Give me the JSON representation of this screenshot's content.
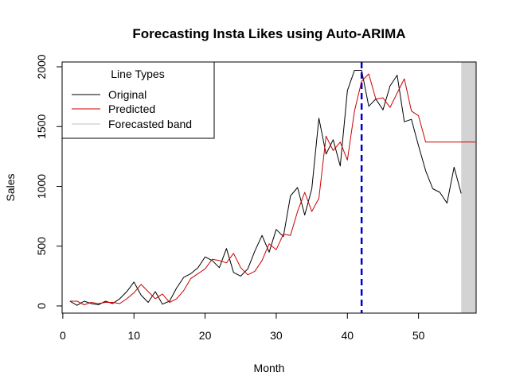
{
  "chart_data": {
    "type": "line",
    "title": "Forecasting Insta Likes using Auto-ARIMA",
    "xlabel": "Month",
    "ylabel": "Sales",
    "xlim": [
      -0.1,
      58.1
    ],
    "ylim": [
      -60,
      2040
    ],
    "x_ticks": [
      0,
      10,
      20,
      30,
      40,
      50
    ],
    "y_ticks": [
      0,
      500,
      1000,
      1500,
      2000
    ],
    "grid": false,
    "vline": {
      "x": 42,
      "color": "#0000cc",
      "style": "dashed"
    },
    "band": {
      "x_from": 56,
      "x_to": 58.1,
      "color": "#d3d3d3"
    },
    "legend": {
      "title": "Line Types",
      "placement": "top-left",
      "entries": [
        {
          "label": "Original",
          "color": "#000000"
        },
        {
          "label": "Predicted",
          "color": "#cc0000"
        },
        {
          "label": "Forecasted band",
          "color": "#c0c0c0"
        }
      ]
    },
    "series": [
      {
        "name": "Original",
        "color": "#000000",
        "x": [
          1,
          2,
          3,
          4,
          5,
          6,
          7,
          8,
          9,
          10,
          11,
          12,
          13,
          14,
          15,
          16,
          17,
          18,
          19,
          20,
          21,
          22,
          23,
          24,
          25,
          26,
          27,
          28,
          29,
          30,
          31,
          32,
          33,
          34,
          35,
          36,
          37,
          38,
          39,
          40,
          41,
          42,
          43,
          44,
          45,
          46,
          47,
          48,
          49,
          50,
          51,
          52,
          53,
          54,
          55,
          56
        ],
        "y": [
          40,
          5,
          40,
          20,
          10,
          40,
          20,
          60,
          120,
          200,
          90,
          30,
          120,
          15,
          40,
          150,
          240,
          270,
          320,
          410,
          380,
          320,
          480,
          280,
          250,
          310,
          460,
          590,
          450,
          640,
          580,
          920,
          990,
          760,
          980,
          1570,
          1270,
          1390,
          1170,
          1800,
          1970,
          1970,
          1670,
          1730,
          1640,
          1840,
          1930,
          1540,
          1560,
          1340,
          1130,
          980,
          950,
          860,
          1160,
          940
        ]
      },
      {
        "name": "Predicted",
        "color": "#cc0000",
        "x": [
          1,
          2,
          3,
          4,
          5,
          6,
          7,
          8,
          9,
          10,
          11,
          12,
          13,
          14,
          15,
          16,
          17,
          18,
          19,
          20,
          21,
          22,
          23,
          24,
          25,
          26,
          27,
          28,
          29,
          30,
          31,
          32,
          33,
          34,
          35,
          36,
          37,
          38,
          39,
          40,
          41,
          42,
          43,
          44,
          45,
          46,
          47,
          48,
          49,
          50,
          51,
          52,
          53,
          54,
          55,
          56,
          57,
          58
        ],
        "y": [
          40,
          40,
          10,
          30,
          20,
          30,
          30,
          20,
          60,
          110,
          180,
          120,
          60,
          100,
          30,
          60,
          130,
          230,
          270,
          310,
          390,
          380,
          360,
          440,
          320,
          260,
          290,
          380,
          520,
          470,
          600,
          590,
          790,
          950,
          790,
          900,
          1420,
          1300,
          1370,
          1220,
          1630,
          1880,
          1940,
          1730,
          1740,
          1660,
          1780,
          1900,
          1630,
          1590,
          1370,
          1370,
          1370,
          1370,
          1370,
          1370,
          1370,
          1370
        ]
      }
    ]
  }
}
